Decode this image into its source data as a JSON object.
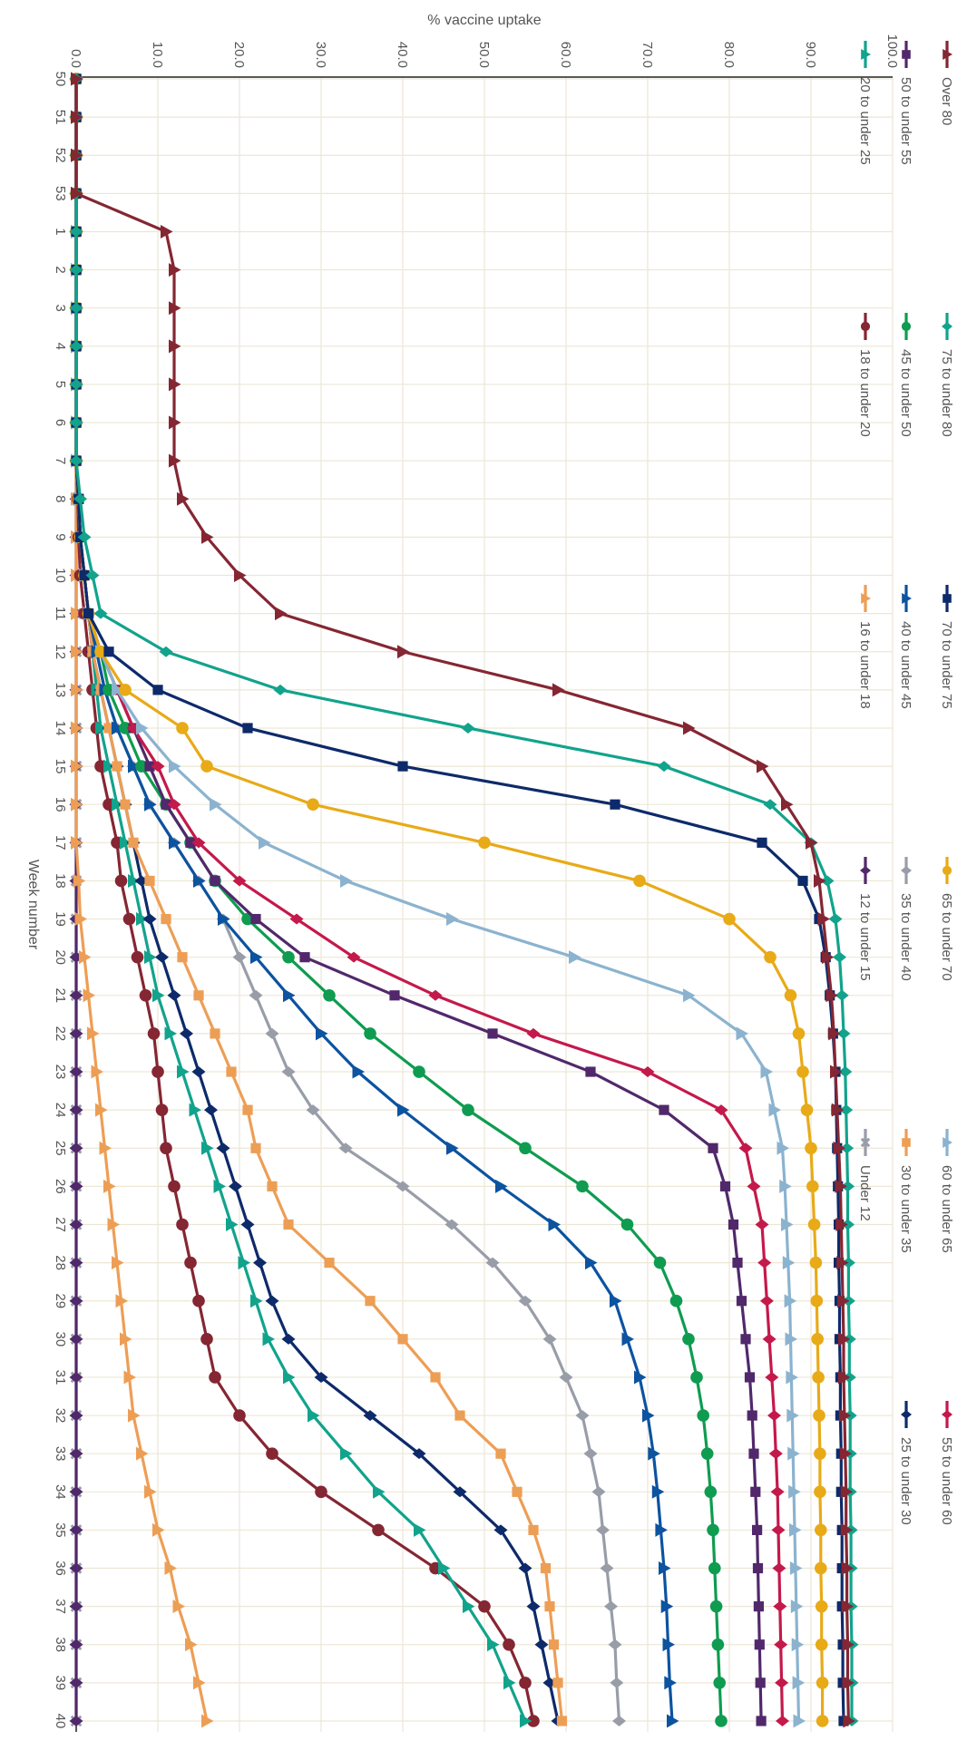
{
  "chart_data": {
    "type": "line",
    "title": "",
    "xlabel": "Week number",
    "ylabel": "% vaccine uptake",
    "ylim": [
      0,
      100
    ],
    "yticks": [
      "0.0",
      "10.0",
      "20.0",
      "30.0",
      "40.0",
      "50.0",
      "60.0",
      "70.0",
      "80.0",
      "90.0",
      "100.0"
    ],
    "categories": [
      "50",
      "51",
      "52",
      "53",
      "1",
      "2",
      "3",
      "4",
      "5",
      "6",
      "7",
      "8",
      "9",
      "10",
      "11",
      "12",
      "13",
      "14",
      "15",
      "16",
      "17",
      "18",
      "19",
      "20",
      "21",
      "22",
      "23",
      "24",
      "25",
      "26",
      "27",
      "28",
      "29",
      "30",
      "31",
      "32",
      "33",
      "34",
      "35",
      "36",
      "37",
      "38",
      "39",
      "40"
    ],
    "grid": true,
    "legend_position": "top",
    "rotation": "rotated 90 degrees clockwise",
    "series": [
      {
        "name": "Over 80",
        "color": "#852633",
        "marker": "triangle",
        "values": [
          0,
          0,
          0,
          0,
          11,
          12,
          12,
          12,
          12,
          12,
          12,
          13,
          16,
          20,
          25,
          40,
          59,
          75,
          84,
          87,
          90,
          91,
          91.5,
          92,
          92.5,
          92.8,
          93,
          93.2,
          93.4,
          93.6,
          93.7,
          93.8,
          93.9,
          94,
          94,
          94.1,
          94.2,
          94.3,
          94.3,
          94.4,
          94.4,
          94.5,
          94.5,
          94.6
        ]
      },
      {
        "name": "75 to under 80",
        "color": "#12a38c",
        "marker": "diamond",
        "values": [
          0,
          0,
          0,
          0,
          0,
          0,
          0,
          0,
          0,
          0,
          0,
          0.5,
          1,
          2,
          3,
          11,
          25,
          48,
          72,
          85,
          90,
          92,
          93,
          93.5,
          93.8,
          94,
          94.2,
          94.3,
          94.4,
          94.5,
          94.5,
          94.6,
          94.6,
          94.7,
          94.7,
          94.8,
          94.8,
          94.8,
          94.9,
          94.9,
          94.9,
          95,
          95,
          95
        ]
      },
      {
        "name": "70 to under 75",
        "color": "#0d2a6a",
        "marker": "square",
        "values": [
          0,
          0,
          0,
          0,
          0,
          0,
          0,
          0,
          0,
          0,
          0,
          0.3,
          0.5,
          1,
          1.5,
          4,
          10,
          21,
          40,
          66,
          84,
          89,
          91,
          91.8,
          92.3,
          92.7,
          93,
          93.1,
          93.2,
          93.3,
          93.4,
          93.4,
          93.5,
          93.5,
          93.6,
          93.6,
          93.7,
          93.7,
          93.8,
          93.8,
          93.8,
          93.9,
          93.9,
          94
        ]
      },
      {
        "name": "65 to under 70",
        "color": "#e8aa17",
        "marker": "circle",
        "values": [
          0,
          0,
          0,
          0,
          0,
          0,
          0,
          0,
          0,
          0,
          0,
          0.3,
          0.5,
          1,
          1.5,
          3,
          6,
          13,
          16,
          29,
          50,
          69,
          80,
          85,
          87.5,
          88.5,
          89,
          89.5,
          90,
          90.2,
          90.4,
          90.6,
          90.7,
          90.8,
          90.9,
          91,
          91.1,
          91.1,
          91.2,
          91.2,
          91.3,
          91.3,
          91.4,
          91.4
        ]
      },
      {
        "name": "60 to under 65",
        "color": "#8bb3cf",
        "marker": "triangle",
        "values": [
          0,
          0,
          0,
          0,
          0,
          0,
          0,
          0,
          0,
          0,
          0,
          0.3,
          0.5,
          1,
          1.5,
          3,
          5,
          8,
          12,
          17,
          23,
          33,
          46,
          61,
          75,
          81.5,
          84.5,
          85.5,
          86.5,
          86.8,
          87,
          87.2,
          87.4,
          87.5,
          87.6,
          87.7,
          87.8,
          87.9,
          88,
          88.1,
          88.2,
          88.3,
          88.4,
          88.5
        ]
      },
      {
        "name": "55 to under 60",
        "color": "#c4194b",
        "marker": "diamond",
        "values": [
          0,
          0,
          0,
          0,
          0,
          0,
          0,
          0,
          0,
          0,
          0,
          0.3,
          0.5,
          1,
          1.5,
          3,
          5,
          7,
          10,
          12,
          15,
          20,
          27,
          34,
          44,
          56,
          70,
          79,
          82,
          83,
          84,
          84.3,
          84.6,
          84.9,
          85.2,
          85.5,
          85.7,
          85.9,
          86,
          86.1,
          86.2,
          86.3,
          86.4,
          86.5
        ]
      },
      {
        "name": "50 to under 55",
        "color": "#51286b",
        "marker": "square",
        "values": [
          0,
          0,
          0,
          0,
          0,
          0,
          0,
          0,
          0,
          0,
          0,
          0.3,
          0.5,
          1,
          1.5,
          3,
          5,
          7,
          9,
          11,
          14,
          17,
          22,
          28,
          39,
          51,
          63,
          72,
          78,
          79.5,
          80.5,
          81,
          81.5,
          82,
          82.5,
          82.8,
          83,
          83.2,
          83.4,
          83.5,
          83.6,
          83.7,
          83.8,
          83.9
        ]
      },
      {
        "name": "45 to under 50",
        "color": "#0f9c50",
        "marker": "circle",
        "values": [
          0,
          0,
          0,
          0,
          0,
          0,
          0,
          0,
          0,
          0,
          0,
          0.3,
          0.5,
          1,
          1.5,
          3,
          4,
          6,
          8,
          11,
          14,
          17,
          21,
          26,
          31,
          36,
          42,
          48,
          55,
          62,
          67.5,
          71.5,
          73.5,
          75,
          76,
          76.8,
          77.3,
          77.7,
          78,
          78.2,
          78.4,
          78.6,
          78.8,
          79
        ]
      },
      {
        "name": "40 to under 45",
        "color": "#0c53a0",
        "marker": "triangle",
        "values": [
          0,
          0,
          0,
          0,
          0,
          0,
          0,
          0,
          0,
          0,
          0,
          0.3,
          0.5,
          1,
          1.5,
          2.5,
          3.5,
          5,
          7,
          9,
          12,
          15,
          18,
          22,
          26,
          30,
          34.5,
          40,
          46,
          52,
          58.5,
          63,
          66,
          67.5,
          69,
          70,
          70.7,
          71.2,
          71.6,
          72,
          72.3,
          72.5,
          72.7,
          73
        ]
      },
      {
        "name": "35 to under 40",
        "color": "#989da8",
        "marker": "diamond",
        "values": [
          0,
          0,
          0,
          0,
          0,
          0,
          0,
          0,
          0,
          0,
          0,
          0.3,
          0.5,
          1,
          1.5,
          2.5,
          3.5,
          5,
          7,
          9,
          12,
          15,
          18,
          20,
          22,
          24,
          26,
          29,
          33,
          40,
          46,
          51,
          55,
          58,
          60,
          62,
          63,
          64,
          64.5,
          65,
          65.5,
          66,
          66.2,
          66.5
        ]
      },
      {
        "name": "30 to under 35",
        "color": "#ed9e55",
        "marker": "square",
        "values": [
          0,
          0,
          0,
          0,
          0,
          0,
          0,
          0,
          0,
          0,
          0,
          0.3,
          0.5,
          1,
          1.5,
          2,
          3,
          4,
          5,
          6,
          7,
          9,
          11,
          13,
          15,
          17,
          19,
          21,
          22,
          24,
          26,
          31,
          36,
          40,
          44,
          47,
          52,
          54,
          56,
          57.5,
          58,
          58.5,
          59,
          59.5
        ]
      },
      {
        "name": "25 to under 30",
        "color": "#0d2a6a",
        "marker": "diamond",
        "values": [
          0,
          0,
          0,
          0,
          0,
          0,
          0,
          0,
          0,
          0,
          0,
          0.3,
          0.5,
          1,
          1.5,
          2,
          3,
          4,
          5,
          6,
          7,
          8,
          9,
          10.5,
          12,
          13.5,
          15,
          16.5,
          18,
          19.5,
          21,
          22.5,
          24,
          26,
          30,
          36,
          42,
          47,
          52,
          55,
          56,
          57,
          58,
          59
        ]
      },
      {
        "name": "20 to under 25",
        "color": "#12a38c",
        "marker": "triangle",
        "values": [
          0,
          0,
          0,
          0,
          0,
          0,
          0,
          0,
          0,
          0,
          0,
          0.3,
          0.5,
          1,
          1.5,
          2,
          2.5,
          3,
          4,
          5,
          6,
          7,
          8,
          9,
          10,
          11.5,
          13,
          14.5,
          16,
          17.5,
          19,
          20.5,
          22,
          23.5,
          26,
          29,
          33,
          37,
          42,
          45,
          48,
          51,
          53,
          55
        ]
      },
      {
        "name": "18 to under 20",
        "color": "#852633",
        "marker": "circle",
        "values": [
          0,
          0,
          0,
          0,
          0,
          0,
          0,
          0,
          0,
          0,
          0,
          0.2,
          0.3,
          0.5,
          1,
          1.5,
          2,
          2.5,
          3,
          4,
          5,
          5.5,
          6.5,
          7.5,
          8.5,
          9.5,
          10,
          10.5,
          11,
          12,
          13,
          14,
          15,
          16,
          17,
          20,
          24,
          30,
          37,
          44,
          50,
          53,
          55,
          56
        ]
      },
      {
        "name": "16 to under 18",
        "color": "#ed9e55",
        "marker": "triangle",
        "values": [
          0,
          0,
          0,
          0,
          0,
          0,
          0,
          0,
          0,
          0,
          0,
          0,
          0,
          0,
          0,
          0,
          0,
          0,
          0,
          0,
          0,
          0.3,
          0.5,
          1,
          1.5,
          2,
          2.5,
          3,
          3.5,
          4,
          4.5,
          5,
          5.5,
          6,
          6.5,
          7,
          8,
          9,
          10,
          11.5,
          12.5,
          14,
          15,
          16
        ]
      },
      {
        "name": "12 to under 15",
        "color": "#51286b",
        "marker": "diamond",
        "values": [
          0,
          0,
          0,
          0,
          0,
          0,
          0,
          0,
          0,
          0,
          0,
          0,
          0,
          0,
          0,
          0,
          0,
          0,
          0,
          0,
          0,
          0,
          0,
          0,
          0,
          0,
          0,
          0,
          0,
          0,
          0,
          0,
          0,
          0,
          0,
          0,
          0,
          0,
          0,
          0,
          0,
          0,
          0,
          0
        ]
      },
      {
        "name": "Under 12",
        "color": "#989da8",
        "marker": "x",
        "values": [
          0,
          0,
          0,
          0,
          0,
          0,
          0,
          0,
          0,
          0,
          0,
          0,
          0,
          0,
          0,
          0,
          0,
          0,
          0,
          0,
          0,
          0,
          0,
          0,
          0,
          0,
          0,
          0,
          0,
          0,
          0,
          0,
          0,
          0,
          0,
          0,
          0,
          0,
          0,
          0,
          0,
          0,
          0,
          0
        ]
      }
    ]
  }
}
